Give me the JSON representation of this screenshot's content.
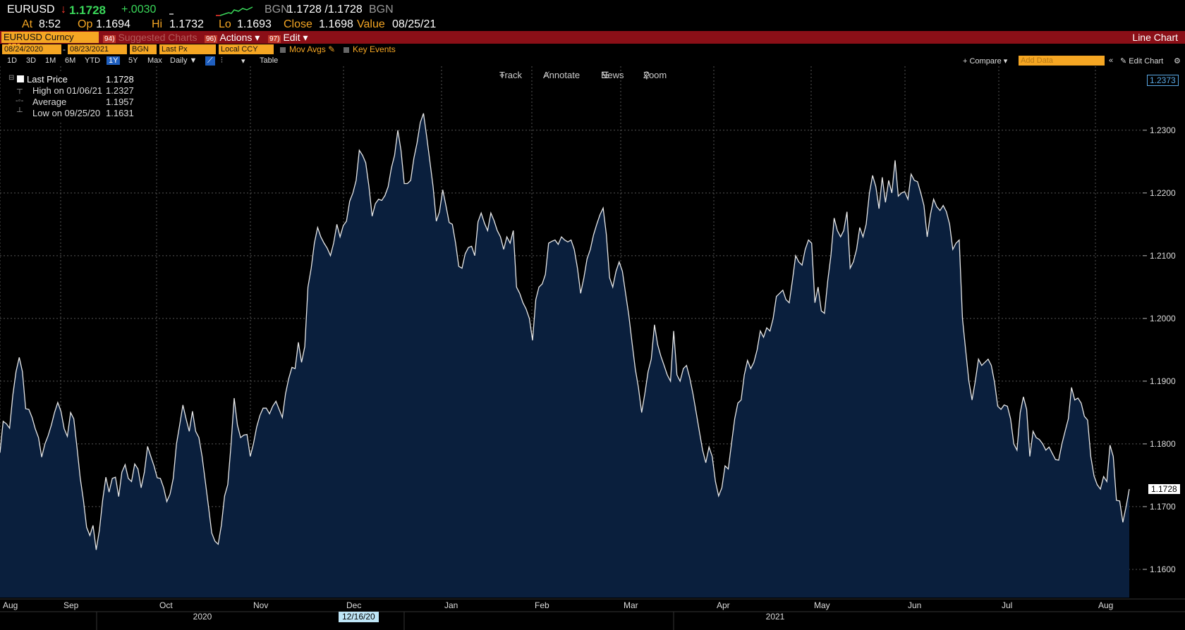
{
  "header": {
    "ticker": "EURUSD",
    "arrow": "↓",
    "last": "1.1728",
    "change": "+.0030",
    "source_label": "BGN",
    "bid_ask": "1.1728 /1.1728",
    "source_label2": "BGN",
    "at_label": "At",
    "time": "8:52",
    "open_label": "Op",
    "open": "1.1694",
    "high_label": "Hi",
    "high": "1.1732",
    "low_label": "Lo",
    "low": "1.1693",
    "close_label": "Close",
    "close": "1.1698",
    "value_label": "Value",
    "value_date": "08/25/21"
  },
  "toolbar": {
    "security": "EURUSD Curncy",
    "suggested_num": "94)",
    "suggested": "Suggested Charts",
    "actions_num": "96)",
    "actions": "Actions ▾",
    "edit_num": "97)",
    "edit": "Edit ▾",
    "chart_type": "Line Chart"
  },
  "settings": {
    "start_date": "08/24/2020",
    "dash": "-",
    "end_date": "08/23/2021",
    "source": "BGN",
    "field": "Last Px",
    "currency": "Local CCY",
    "mov_avgs": "Mov Avgs",
    "key_events": "Key Events"
  },
  "ranges": {
    "items": [
      "1D",
      "3D",
      "1M",
      "6M",
      "YTD",
      "1Y",
      "5Y",
      "Max"
    ],
    "selected": "1Y",
    "period": "Daily ▼",
    "table": "Table",
    "compare": "+ Compare ▾",
    "add_data_placeholder": "Add Data",
    "edit_chart": "Edit Chart"
  },
  "tools": {
    "track": "Track",
    "annotate": "Annotate",
    "news": "News",
    "zoom": "Zoom"
  },
  "legend": {
    "last_label": "Last Price",
    "last_value": "1.1728",
    "high_label": "High on 01/06/21",
    "high_value": "1.2327",
    "avg_label": "Average",
    "avg_value": "1.1957",
    "low_label": "Low on 09/25/20",
    "low_value": "1.1631"
  },
  "chart_data": {
    "type": "area",
    "x_start": "2020-08-24",
    "x_end": "2021-08-23",
    "ylim": [
      1.1555,
      1.2402
    ],
    "y_ticks": [
      "1.1600",
      "1.1700",
      "1.1800",
      "1.1900",
      "1.2000",
      "1.2100",
      "1.2200",
      "1.2300"
    ],
    "x_ticks": [
      "Aug",
      "Sep",
      "Oct",
      "Nov",
      "Dec",
      "Jan",
      "Feb",
      "Mar",
      "Apr",
      "May",
      "Jun",
      "Jul",
      "Aug"
    ],
    "year_labels": [
      "2020",
      "2021"
    ],
    "cursor_date": "12/16/20",
    "current_label": "1.1728",
    "top_label": "1.2373",
    "fill_color": "#0a1f3d",
    "line_color": "#e8e8e8",
    "values": [
      1.1786,
      1.1836,
      1.1832,
      1.1825,
      1.1878,
      1.1915,
      1.1938,
      1.1915,
      1.1856,
      1.1855,
      1.1842,
      1.1824,
      1.181,
      1.1779,
      1.18,
      1.1813,
      1.183,
      1.185,
      1.1866,
      1.1852,
      1.1824,
      1.1812,
      1.185,
      1.184,
      1.1794,
      1.1746,
      1.171,
      1.1667,
      1.1654,
      1.167,
      1.1631,
      1.1663,
      1.171,
      1.1747,
      1.1723,
      1.1745,
      1.1747,
      1.1716,
      1.1755,
      1.1767,
      1.1745,
      1.174,
      1.1768,
      1.176,
      1.173,
      1.1755,
      1.1796,
      1.178,
      1.1765,
      1.1746,
      1.1745,
      1.173,
      1.1708,
      1.172,
      1.1745,
      1.18,
      1.183,
      1.1862,
      1.184,
      1.182,
      1.1852,
      1.182,
      1.181,
      1.178,
      1.174,
      1.17,
      1.1658,
      1.1645,
      1.164,
      1.167,
      1.1717,
      1.1735,
      1.1798,
      1.1873,
      1.183,
      1.181,
      1.1814,
      1.1815,
      1.178,
      1.18,
      1.1827,
      1.1845,
      1.1857,
      1.1857,
      1.1848,
      1.186,
      1.1868,
      1.1855,
      1.1842,
      1.188,
      1.1904,
      1.1922,
      1.192,
      1.1962,
      1.193,
      1.1955,
      1.205,
      1.208,
      1.212,
      1.2145,
      1.213,
      1.212,
      1.2112,
      1.21,
      1.212,
      1.215,
      1.213,
      1.2148,
      1.2155,
      1.2187,
      1.22,
      1.222,
      1.2268,
      1.226,
      1.2248,
      1.221,
      1.2163,
      1.2183,
      1.219,
      1.2188,
      1.2196,
      1.221,
      1.224,
      1.226,
      1.23,
      1.2268,
      1.2215,
      1.2215,
      1.222,
      1.2255,
      1.228,
      1.2312,
      1.2327,
      1.229,
      1.225,
      1.221,
      1.2155,
      1.217,
      1.2205,
      1.218,
      1.2153,
      1.215,
      1.212,
      1.2083,
      1.208,
      1.2103,
      1.2113,
      1.2115,
      1.21,
      1.2154,
      1.2168,
      1.2152,
      1.214,
      1.2168,
      1.2156,
      1.214,
      1.213,
      1.211,
      1.213,
      1.212,
      1.214,
      1.205,
      1.204,
      1.2025,
      1.2015,
      1.2,
      1.1965,
      1.203,
      1.205,
      1.2055,
      1.207,
      1.212,
      1.2123,
      1.2125,
      1.2118,
      1.213,
      1.2125,
      1.2122,
      1.2125,
      1.211,
      1.208,
      1.204,
      1.2065,
      1.2095,
      1.211,
      1.2133,
      1.215,
      1.2165,
      1.2176,
      1.2134,
      1.2065,
      1.205,
      1.2075,
      1.209,
      1.2075,
      1.204,
      1.2005,
      1.1962,
      1.192,
      1.189,
      1.185,
      1.188,
      1.1915,
      1.1935,
      1.199,
      1.1958,
      1.194,
      1.1925,
      1.191,
      1.19,
      1.198,
      1.191,
      1.19,
      1.192,
      1.1925,
      1.1905,
      1.188,
      1.185,
      1.182,
      1.179,
      1.177,
      1.1795,
      1.178,
      1.174,
      1.1717,
      1.173,
      1.1765,
      1.176,
      1.18,
      1.184,
      1.1865,
      1.187,
      1.191,
      1.1933,
      1.192,
      1.193,
      1.195,
      1.198,
      1.197,
      1.1985,
      1.198,
      1.2,
      1.2035,
      1.204,
      1.2045,
      1.203,
      1.2025,
      1.206,
      1.21,
      1.209,
      1.2085,
      1.211,
      1.2125,
      1.212,
      1.2025,
      1.205,
      1.2012,
      1.2008,
      1.206,
      1.21,
      1.216,
      1.214,
      1.213,
      1.214,
      1.217,
      1.208,
      1.209,
      1.211,
      1.2145,
      1.213,
      1.215,
      1.22,
      1.2228,
      1.221,
      1.2175,
      1.2225,
      1.2185,
      1.222,
      1.22,
      1.2252,
      1.2195,
      1.22,
      1.2202,
      1.219,
      1.223,
      1.222,
      1.2218,
      1.22,
      1.218,
      1.213,
      1.2165,
      1.219,
      1.2178,
      1.2172,
      1.218,
      1.217,
      1.215,
      1.211,
      1.212,
      1.2125,
      1.2,
      1.195,
      1.19,
      1.187,
      1.19,
      1.1935,
      1.1925,
      1.193,
      1.1935,
      1.1925,
      1.1898,
      1.186,
      1.1855,
      1.1862,
      1.186,
      1.184,
      1.18,
      1.179,
      1.185,
      1.1875,
      1.1855,
      1.178,
      1.182,
      1.181,
      1.1807,
      1.18,
      1.179,
      1.1795,
      1.1785,
      1.1775,
      1.1774,
      1.18,
      1.182,
      1.184,
      1.189,
      1.187,
      1.1873,
      1.1865,
      1.1844,
      1.1838,
      1.178,
      1.1749,
      1.1735,
      1.1728,
      1.1748,
      1.174,
      1.1798,
      1.178,
      1.171,
      1.1709,
      1.1675,
      1.17,
      1.1728
    ]
  }
}
